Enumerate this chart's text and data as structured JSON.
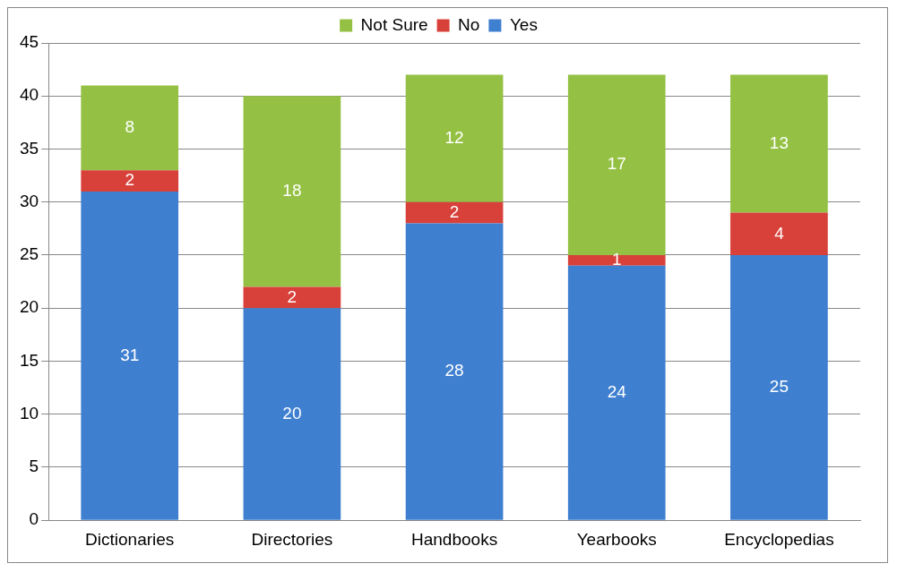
{
  "chart_data": {
    "type": "bar",
    "stacked": true,
    "categories": [
      "Dictionaries",
      "Directories",
      "Handbooks",
      "Yearbooks",
      "Encyclopedias"
    ],
    "series": [
      {
        "name": "Yes",
        "color": "#3f7fd0",
        "values": [
          31,
          20,
          28,
          24,
          25
        ]
      },
      {
        "name": "No",
        "color": "#d8403a",
        "values": [
          2,
          2,
          2,
          1,
          4
        ]
      },
      {
        "name": "Not Sure",
        "color": "#94c143",
        "values": [
          8,
          18,
          12,
          17,
          13
        ]
      }
    ],
    "ylim": [
      0,
      45
    ],
    "yticks": [
      0,
      5,
      10,
      15,
      20,
      25,
      30,
      35,
      40,
      45
    ],
    "grid": "y",
    "legend": "top",
    "data_labels": true
  }
}
